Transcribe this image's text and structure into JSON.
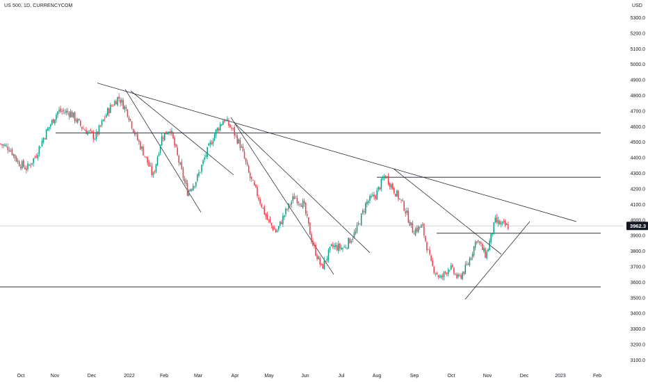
{
  "header": {
    "symbol_line": "US 500, 1D, CURRENCYCOM",
    "currency": "USD"
  },
  "chart_data": {
    "type": "candlestick",
    "symbol": "US 500",
    "interval": "1D",
    "source": "CURRENCYCOM",
    "y_unit": "USD",
    "ylim": [
      3085,
      5360
    ],
    "y_ticks": [
      "5300.0",
      "5200.0",
      "5100.0",
      "5000.0",
      "4900.0",
      "4800.0",
      "4700.0",
      "4600.0",
      "4500.0",
      "4400.0",
      "4300.0",
      "4200.0",
      "4100.0",
      "4000.0",
      "3900.0",
      "3800.0",
      "3700.0",
      "3600.0",
      "3500.0",
      "3400.0",
      "3300.0",
      "3200.0",
      "3100.0"
    ],
    "x_ticks": [
      "Oct",
      "Nov",
      "Dec",
      "2022",
      "Feb",
      "Mar",
      "Apr",
      "May",
      "Jun",
      "Jul",
      "Aug",
      "Sep",
      "Oct",
      "Nov",
      "Dec",
      "2023",
      "Feb"
    ],
    "last_price": "3962.3",
    "up_color": "#089981",
    "down_color": "#f23645",
    "grid": false,
    "close_path": [
      [
        "Oct",
        4460
      ],
      [
        "Oct",
        4370
      ],
      [
        "Oct",
        4330
      ],
      [
        "Oct",
        4410
      ],
      [
        "Nov",
        4560
      ],
      [
        "Nov",
        4700
      ],
      [
        "Nov",
        4690
      ],
      [
        "Dec",
        4590
      ],
      [
        "Dec",
        4530
      ],
      [
        "Dec",
        4700
      ],
      [
        "2022",
        4790
      ],
      [
        "2022",
        4700
      ],
      [
        "2022",
        4540
      ],
      [
        "2022",
        4420
      ],
      [
        "Feb",
        4280
      ],
      [
        "Feb",
        4530
      ],
      [
        "Feb",
        4590
      ],
      [
        "Feb",
        4380
      ],
      [
        "Mar",
        4180
      ],
      [
        "Mar",
        4260
      ],
      [
        "Mar",
        4420
      ],
      [
        "Mar",
        4560
      ],
      [
        "Apr",
        4650
      ],
      [
        "Apr",
        4580
      ],
      [
        "Apr",
        4470
      ],
      [
        "Apr",
        4280
      ],
      [
        "May",
        4150
      ],
      [
        "May",
        4000
      ],
      [
        "May",
        3920
      ],
      [
        "May",
        4050
      ],
      [
        "Jun",
        4150
      ],
      [
        "Jun",
        4100
      ],
      [
        "Jun",
        3850
      ],
      [
        "Jun",
        3690
      ],
      [
        "Jul",
        3830
      ],
      [
        "Jul",
        3820
      ],
      [
        "Jul",
        3920
      ],
      [
        "Aug",
        4110
      ],
      [
        "Aug",
        4160
      ],
      [
        "Aug",
        4290
      ],
      [
        "Aug",
        4190
      ],
      [
        "Sep",
        4090
      ],
      [
        "Sep",
        3930
      ],
      [
        "Sep",
        3960
      ],
      [
        "Sep",
        3710
      ],
      [
        "Oct",
        3620
      ],
      [
        "Oct",
        3700
      ],
      [
        "Oct",
        3620
      ],
      [
        "Oct",
        3710
      ],
      [
        "Nov",
        3880
      ],
      [
        "Nov",
        3770
      ],
      [
        "Nov",
        3990
      ],
      [
        "Nov",
        3962
      ]
    ],
    "drawings": [
      {
        "kind": "horizontal",
        "price": 4560
      },
      {
        "kind": "horizontal",
        "price": 4275
      },
      {
        "kind": "horizontal",
        "price": 3915
      },
      {
        "kind": "horizontal",
        "price": 3570
      },
      {
        "kind": "trendline",
        "from": [
          "Dec",
          4880
        ],
        "to": [
          "Dec",
          3990
        ]
      },
      {
        "kind": "trendline",
        "from": [
          "Dec",
          4840
        ],
        "to": [
          "Feb",
          4050
        ]
      },
      {
        "kind": "trendline",
        "from": [
          "2022",
          4830
        ],
        "to": [
          "Mar",
          4290
        ]
      },
      {
        "kind": "trendline",
        "from": [
          "Apr",
          4660
        ],
        "to": [
          "Jun",
          3650
        ]
      },
      {
        "kind": "trendline",
        "from": [
          "Apr",
          4620
        ],
        "to": [
          "Jul",
          3790
        ]
      },
      {
        "kind": "trendline",
        "from": [
          "Aug",
          4330
        ],
        "to": [
          "Nov",
          3780
        ]
      },
      {
        "kind": "trendline",
        "from": [
          "Oct",
          3490
        ],
        "to": [
          "Nov",
          3990
        ]
      }
    ]
  }
}
